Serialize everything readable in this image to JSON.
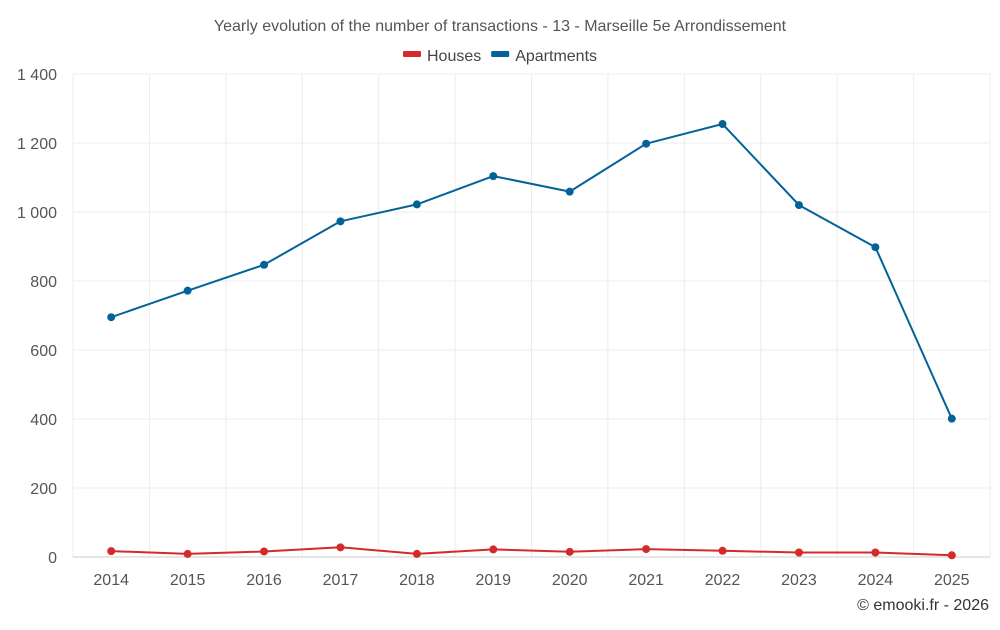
{
  "chart_data": {
    "type": "line",
    "title": "Yearly evolution of the number of transactions - 13 - Marseille 5e Arrondissement",
    "categories": [
      "2014",
      "2015",
      "2016",
      "2017",
      "2018",
      "2019",
      "2020",
      "2021",
      "2022",
      "2023",
      "2024",
      "2025"
    ],
    "series": [
      {
        "name": "Houses",
        "color": "#d42a2a",
        "values": [
          17,
          9,
          16,
          28,
          9,
          22,
          15,
          23,
          18,
          13,
          13,
          5
        ]
      },
      {
        "name": "Apartments",
        "color": "#036399",
        "values": [
          695,
          772,
          847,
          973,
          1022,
          1104,
          1059,
          1198,
          1255,
          1020,
          898,
          401
        ]
      }
    ],
    "ylim": [
      0,
      1400
    ],
    "yticks": [
      {
        "value": 0,
        "label": "0"
      },
      {
        "value": 200,
        "label": "200"
      },
      {
        "value": 400,
        "label": "400"
      },
      {
        "value": 600,
        "label": "600"
      },
      {
        "value": 800,
        "label": "800"
      },
      {
        "value": 1000,
        "label": "1 000"
      },
      {
        "value": 1200,
        "label": "1 200"
      },
      {
        "value": 1400,
        "label": "1 400"
      }
    ],
    "xlabel": "",
    "ylabel": "",
    "grid": true,
    "legend_position": "top-center",
    "credit": "© emooki.fr - 2026"
  }
}
